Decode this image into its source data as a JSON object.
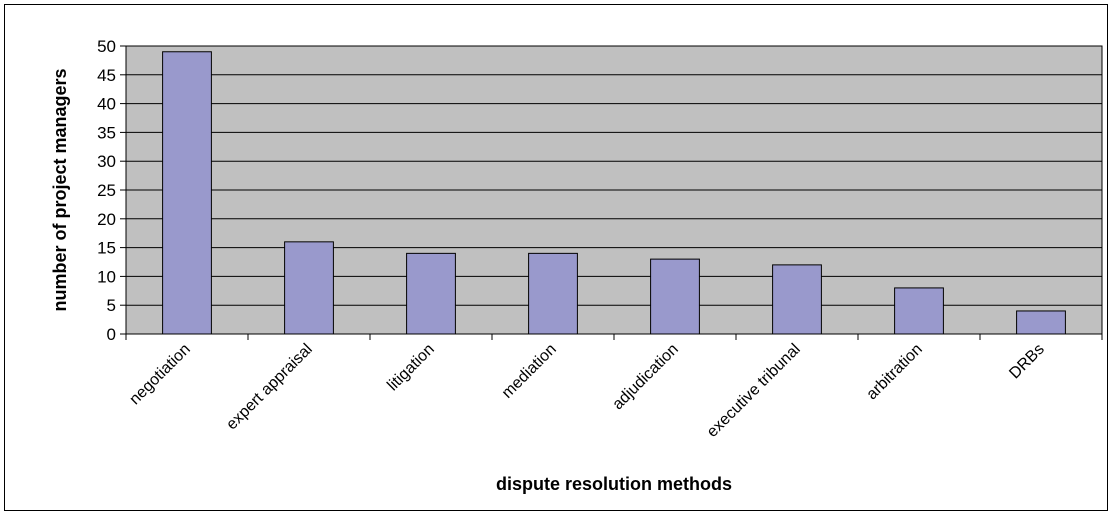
{
  "chart_data": {
    "type": "bar",
    "categories": [
      "negotiation",
      "expert appraisal",
      "litigation",
      "mediation",
      "adjudication",
      "executive tribunal",
      "arbitration",
      "DRBs"
    ],
    "values": [
      49,
      16,
      14,
      14,
      13,
      12,
      8,
      4
    ],
    "xlabel": "dispute resolution methods",
    "ylabel": "number of project managers",
    "ylim": [
      0,
      50
    ],
    "yticks": [
      0,
      5,
      10,
      15,
      20,
      25,
      30,
      35,
      40,
      45,
      50
    ],
    "grid": true,
    "legend": "none",
    "colors": {
      "bar_fill": "#9999cc",
      "plot_background": "#c0c0c0",
      "gridline": "#000000"
    }
  }
}
